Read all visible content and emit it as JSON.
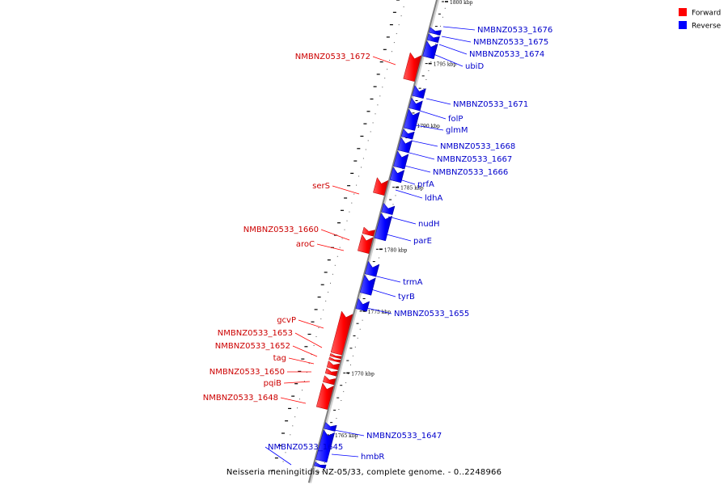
{
  "legend": [
    {
      "label": "Forward",
      "color": "#ff0000"
    },
    {
      "label": "Reverse",
      "color": "#0000ff"
    }
  ],
  "colors": {
    "forward": "#ff0000",
    "forward_label": "#cc0000",
    "reverse": "#0000ff",
    "reverse_label": "#0000cc",
    "axis": "#808080"
  },
  "caption": "Neisseria meningitidis NZ-05/33, complete genome. - 0..2248966",
  "chart_data": {
    "type": "linear-genome-map",
    "position_unit": "kbp",
    "ticks": [
      {
        "label": "1800 kbp",
        "pos": 1800
      },
      {
        "label": "1795 kbp",
        "pos": 1795
      },
      {
        "label": "1790 kbp",
        "pos": 1790
      },
      {
        "label": "1785 kbp",
        "pos": 1785
      },
      {
        "label": "1780 kbp",
        "pos": 1780
      },
      {
        "label": "1775 kbp",
        "pos": 1775
      },
      {
        "label": "1770 kbp",
        "pos": 1770
      },
      {
        "label": "1765 kbp",
        "pos": 1765
      }
    ],
    "genes": [
      {
        "name": "NMBNZ0533_1676",
        "strand": "reverse",
        "start": 1797.8,
        "end": 1797.4
      },
      {
        "name": "NMBNZ0533_1675",
        "strand": "reverse",
        "start": 1797.3,
        "end": 1796.8
      },
      {
        "name": "NMBNZ0533_1674",
        "strand": "reverse",
        "start": 1796.7,
        "end": 1795.5
      },
      {
        "name": "ubiD",
        "strand": "reverse",
        "start": 1796.7,
        "end": 1795.5
      },
      {
        "name": "NMBNZ0533_1672",
        "strand": "forward",
        "start": 1793.4,
        "end": 1795.5
      },
      {
        "name": "NMBNZ0533_1671",
        "strand": "reverse",
        "start": 1793.1,
        "end": 1792.3
      },
      {
        "name": "folP",
        "strand": "reverse",
        "start": 1792.1,
        "end": 1791.3
      },
      {
        "name": "glmM",
        "strand": "reverse",
        "start": 1791.2,
        "end": 1789.7
      },
      {
        "name": "NMBNZ0533_1668",
        "strand": "reverse",
        "start": 1789.6,
        "end": 1789.0
      },
      {
        "name": "NMBNZ0533_1667",
        "strand": "reverse",
        "start": 1788.9,
        "end": 1787.9
      },
      {
        "name": "NMBNZ0533_1666",
        "strand": "reverse",
        "start": 1787.8,
        "end": 1786.6
      },
      {
        "name": "prfA",
        "strand": "reverse",
        "start": 1786.5,
        "end": 1785.5
      },
      {
        "name": "ldhA",
        "strand": "reverse",
        "start": 1786.5,
        "end": 1785.5
      },
      {
        "name": "serS",
        "strand": "forward",
        "start": 1784.2,
        "end": 1785.4
      },
      {
        "name": "nudH",
        "strand": "reverse",
        "start": 1783.6,
        "end": 1782.9
      },
      {
        "name": "parE",
        "strand": "reverse",
        "start": 1782.8,
        "end": 1780.8
      },
      {
        "name": "NMBNZ0533_1660",
        "strand": "forward",
        "start": 1780.9,
        "end": 1781.4
      },
      {
        "name": "aroC",
        "strand": "forward",
        "start": 1779.5,
        "end": 1780.8
      },
      {
        "name": "trmA",
        "strand": "reverse",
        "start": 1778.9,
        "end": 1777.9
      },
      {
        "name": "tyrB",
        "strand": "reverse",
        "start": 1777.8,
        "end": 1776.4
      },
      {
        "name": "NMBNZ0533_1655",
        "strand": "reverse",
        "start": 1775.9,
        "end": 1775.1
      },
      {
        "name": "gcvP",
        "strand": "forward",
        "start": 1771.3,
        "end": 1774.6
      },
      {
        "name": "NMBNZ0533_1653",
        "strand": "forward",
        "start": 1771.0,
        "end": 1771.2
      },
      {
        "name": "NMBNZ0533_1652",
        "strand": "forward",
        "start": 1770.7,
        "end": 1770.9
      },
      {
        "name": "tag",
        "strand": "forward",
        "start": 1770.1,
        "end": 1770.6
      },
      {
        "name": "NMBNZ0533_1650",
        "strand": "forward",
        "start": 1769.6,
        "end": 1770.0
      },
      {
        "name": "pqiB",
        "strand": "forward",
        "start": 1768.9,
        "end": 1769.4
      },
      {
        "name": "NMBNZ0533_1648",
        "strand": "forward",
        "start": 1766.9,
        "end": 1768.8
      },
      {
        "name": "NMBNZ0533_1647",
        "strand": "reverse",
        "start": 1765.9,
        "end": 1765.4
      },
      {
        "name": "hmbR",
        "strand": "reverse",
        "start": 1765.3,
        "end": 1762.9
      },
      {
        "name": "NMBNZ0533_1645",
        "strand": "reverse",
        "start": 1762.7,
        "end": 1762.4
      }
    ]
  }
}
